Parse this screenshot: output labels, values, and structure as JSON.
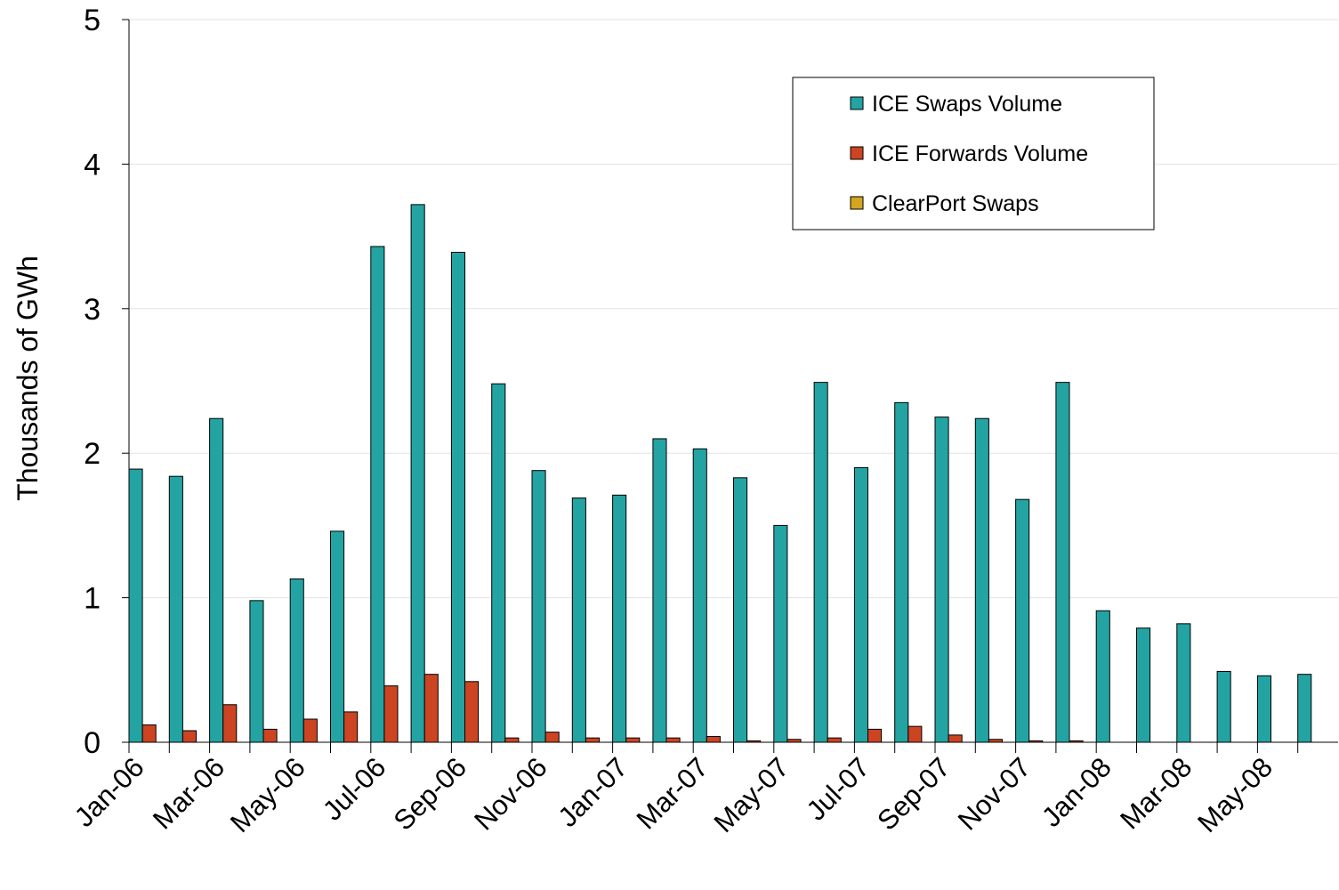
{
  "chart_data": {
    "type": "bar",
    "y_label": "Thousands of GWh",
    "categories": [
      "Jan-06",
      null,
      "Mar-06",
      null,
      "May-06",
      null,
      "Jul-06",
      null,
      "Sep-06",
      null,
      "Nov-06",
      null,
      "Jan-07",
      null,
      "Mar-07",
      null,
      "May-07",
      null,
      "Jul-07",
      null,
      "Sep-07",
      null,
      "Nov-07",
      null,
      "Jan-08",
      null,
      "Mar-08",
      null,
      "May-08",
      null
    ],
    "series": [
      {
        "name": "ICE Swaps Volume",
        "color": "#24a3a3",
        "values": [
          1.89,
          1.84,
          2.24,
          0.98,
          1.13,
          1.46,
          3.43,
          3.72,
          3.39,
          2.48,
          1.88,
          1.69,
          1.71,
          2.1,
          2.03,
          1.83,
          1.5,
          2.49,
          1.9,
          2.35,
          2.25,
          2.24,
          1.68,
          2.49,
          0.91,
          0.79,
          0.82,
          0.49,
          0.46,
          0.47
        ]
      },
      {
        "name": "ICE Forwards Volume",
        "color": "#cc4422",
        "values": [
          0.12,
          0.08,
          0.26,
          0.09,
          0.16,
          0.21,
          0.39,
          0.47,
          0.42,
          0.03,
          0.07,
          0.03,
          0.03,
          0.03,
          0.04,
          0.01,
          0.02,
          0.03,
          0.09,
          0.11,
          0.05,
          0.02,
          0.01,
          0.01,
          0,
          0,
          0,
          0,
          0,
          0
        ]
      },
      {
        "name": "ClearPort Swaps",
        "color": "#d4a520",
        "values": [
          0,
          0,
          0,
          0,
          0,
          0,
          0,
          0,
          0,
          0,
          0,
          0,
          0,
          0,
          0,
          0,
          0,
          0,
          0,
          0,
          0,
          0,
          0,
          0,
          0,
          0,
          0,
          0,
          0,
          0
        ]
      }
    ],
    "ylim": [
      0,
      5
    ],
    "yticks": [
      0,
      1,
      2,
      3,
      4,
      5
    ],
    "grid": true
  }
}
